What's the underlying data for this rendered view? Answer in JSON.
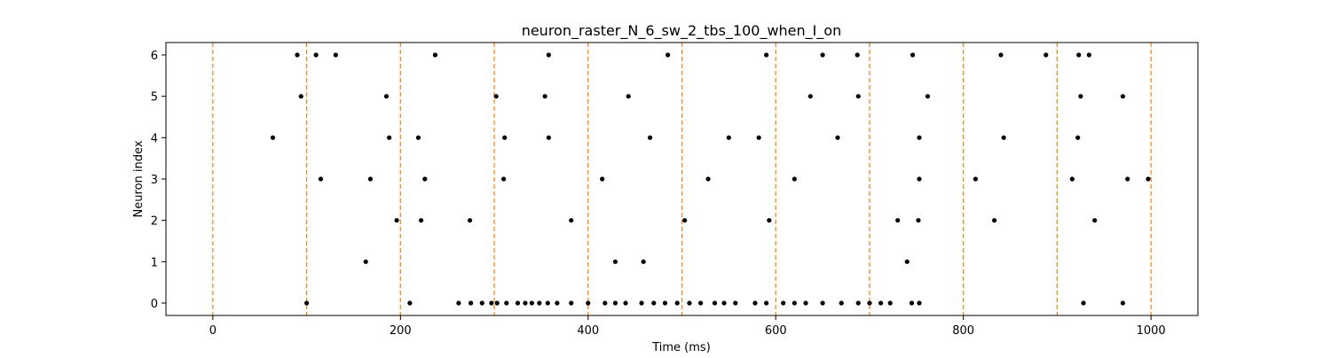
{
  "chart_data": {
    "type": "scatter",
    "title": "neuron_raster_N_6_sw_2_tbs_100_when_I_on",
    "xlabel": "Time (ms)",
    "ylabel": "Neuron index",
    "xlim": [
      -50,
      1050
    ],
    "ylim": [
      -0.3,
      6.3
    ],
    "xticks": [
      0,
      200,
      400,
      600,
      800,
      1000
    ],
    "yticks": [
      0,
      1,
      2,
      3,
      4,
      5,
      6
    ],
    "grid": false,
    "marker_color": "#000000",
    "vline_color": "#ff7f0e",
    "vlines": [
      0,
      100,
      200,
      300,
      400,
      500,
      600,
      700,
      800,
      900,
      1000
    ],
    "series": [
      {
        "spikes": [
          [
            100,
            0
          ],
          [
            210,
            0
          ],
          [
            262,
            0
          ],
          [
            275,
            0
          ],
          [
            287,
            0
          ],
          [
            297,
            0
          ],
          [
            303,
            0
          ],
          [
            313,
            0
          ],
          [
            325,
            0
          ],
          [
            333,
            0
          ],
          [
            340,
            0
          ],
          [
            348,
            0
          ],
          [
            357,
            0
          ],
          [
            367,
            0
          ],
          [
            382,
            0
          ],
          [
            400,
            0
          ],
          [
            418,
            0
          ],
          [
            429,
            0
          ],
          [
            440,
            0
          ],
          [
            457,
            0
          ],
          [
            470,
            0
          ],
          [
            482,
            0
          ],
          [
            495,
            0
          ],
          [
            508,
            0
          ],
          [
            520,
            0
          ],
          [
            535,
            0
          ],
          [
            545,
            0
          ],
          [
            557,
            0
          ],
          [
            578,
            0
          ],
          [
            590,
            0
          ],
          [
            608,
            0
          ],
          [
            620,
            0
          ],
          [
            632,
            0
          ],
          [
            650,
            0
          ],
          [
            670,
            0
          ],
          [
            688,
            0
          ],
          [
            700,
            0
          ],
          [
            712,
            0
          ],
          [
            722,
            0
          ],
          [
            745,
            0
          ],
          [
            753,
            0
          ],
          [
            928,
            0
          ],
          [
            970,
            0
          ],
          [
            163,
            1
          ],
          [
            429,
            1
          ],
          [
            459,
            1
          ],
          [
            740,
            1
          ],
          [
            196,
            2
          ],
          [
            222,
            2
          ],
          [
            274,
            2
          ],
          [
            382,
            2
          ],
          [
            503,
            2
          ],
          [
            593,
            2
          ],
          [
            730,
            2
          ],
          [
            752,
            2
          ],
          [
            833,
            2
          ],
          [
            940,
            2
          ],
          [
            115,
            3
          ],
          [
            168,
            3
          ],
          [
            226,
            3
          ],
          [
            310,
            3
          ],
          [
            415,
            3
          ],
          [
            528,
            3
          ],
          [
            620,
            3
          ],
          [
            753,
            3
          ],
          [
            813,
            3
          ],
          [
            916,
            3
          ],
          [
            975,
            3
          ],
          [
            997,
            3
          ],
          [
            64,
            4
          ],
          [
            188,
            4
          ],
          [
            219,
            4
          ],
          [
            311,
            4
          ],
          [
            358,
            4
          ],
          [
            466,
            4
          ],
          [
            550,
            4
          ],
          [
            582,
            4
          ],
          [
            666,
            4
          ],
          [
            753,
            4
          ],
          [
            843,
            4
          ],
          [
            922,
            4
          ],
          [
            94,
            5
          ],
          [
            185,
            5
          ],
          [
            302,
            5
          ],
          [
            354,
            5
          ],
          [
            443,
            5
          ],
          [
            637,
            5
          ],
          [
            688,
            5
          ],
          [
            762,
            5
          ],
          [
            925,
            5
          ],
          [
            970,
            5
          ],
          [
            90,
            6
          ],
          [
            110,
            6
          ],
          [
            131,
            6
          ],
          [
            237,
            6
          ],
          [
            358,
            6
          ],
          [
            485,
            6
          ],
          [
            590,
            6
          ],
          [
            650,
            6
          ],
          [
            687,
            6
          ],
          [
            746,
            6
          ],
          [
            840,
            6
          ],
          [
            888,
            6
          ],
          [
            923,
            6
          ],
          [
            934,
            6
          ]
        ]
      }
    ]
  }
}
